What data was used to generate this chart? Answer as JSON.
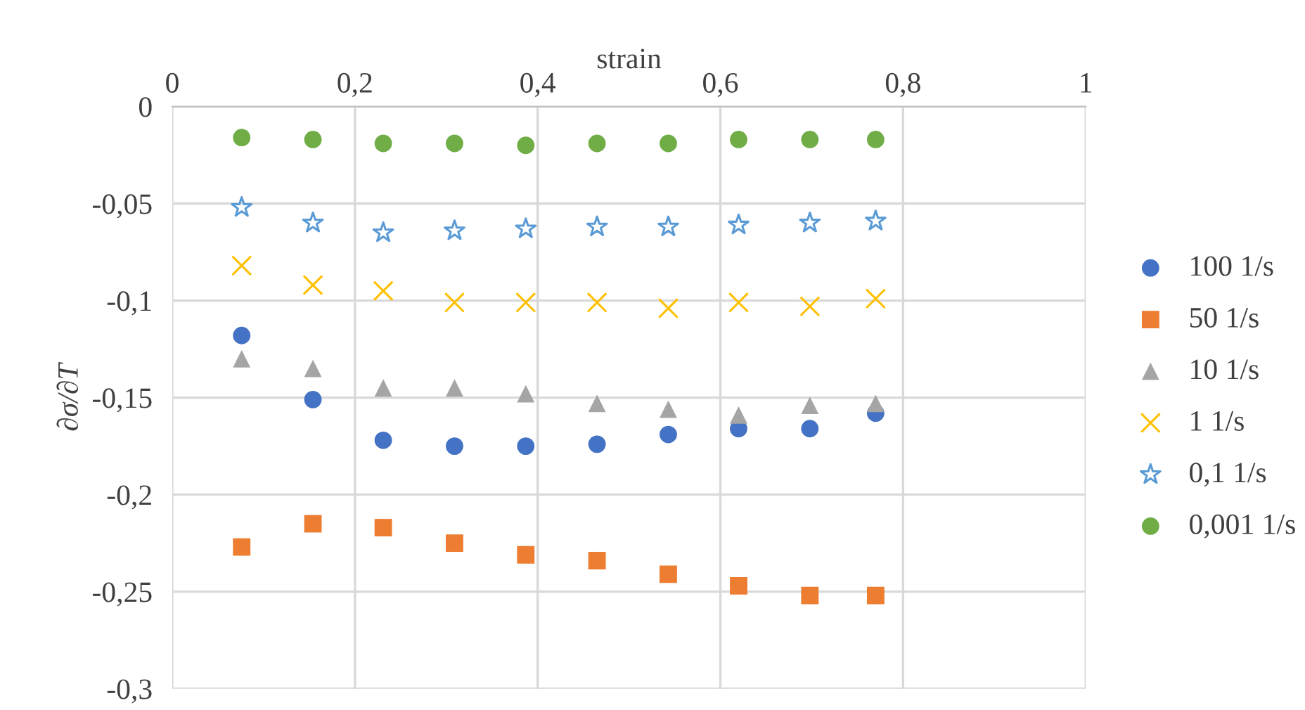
{
  "chart_data": {
    "type": "scatter",
    "xlabel": "strain",
    "ylabel": "∂σ/∂T",
    "xlim": [
      0,
      1
    ],
    "xticks": [
      0,
      {
        "value": 0.2,
        "label": "0,2"
      },
      {
        "value": 0.4,
        "label": "0,4"
      },
      {
        "value": 0.6,
        "label": "0,6"
      },
      {
        "value": 0.8,
        "label": "0,8"
      },
      1
    ],
    "ylim": [
      -0.3,
      0
    ],
    "yticks": [
      {
        "value": -0.3,
        "label": "-0,3"
      },
      {
        "value": -0.25,
        "label": "-0,25"
      },
      {
        "value": -0.2,
        "label": "-0,2"
      },
      {
        "value": -0.15,
        "label": "-0,15"
      },
      {
        "value": -0.1,
        "label": "-0,1"
      },
      {
        "value": -0.05,
        "label": "-0,05"
      },
      0
    ],
    "grid": true,
    "legend": "right",
    "x": [
      0.076,
      0.154,
      0.231,
      0.309,
      0.387,
      0.465,
      0.543,
      0.62,
      0.698,
      0.77
    ],
    "series": [
      {
        "name": "100 1/s",
        "color": "#4472c4",
        "marker": "circle",
        "values": [
          -0.118,
          -0.151,
          -0.172,
          -0.175,
          -0.175,
          -0.174,
          -0.169,
          -0.166,
          -0.166,
          -0.158
        ]
      },
      {
        "name": "50 1/s",
        "color": "#ed7d31",
        "marker": "square",
        "values": [
          -0.227,
          -0.215,
          -0.217,
          -0.225,
          -0.231,
          -0.234,
          -0.241,
          -0.247,
          -0.252,
          -0.252
        ]
      },
      {
        "name": "10 1/s",
        "color": "#a5a5a5",
        "marker": "triangle",
        "values": [
          -0.13,
          -0.135,
          -0.145,
          -0.145,
          -0.148,
          -0.153,
          -0.156,
          -0.159,
          -0.154,
          -0.153
        ]
      },
      {
        "name": "1 1/s",
        "color": "#ffc000",
        "marker": "cross",
        "values": [
          -0.082,
          -0.092,
          -0.095,
          -0.101,
          -0.101,
          -0.101,
          -0.104,
          -0.101,
          -0.103,
          -0.099
        ]
      },
      {
        "name": "0,1 1/s",
        "color": "#5b9bd5",
        "marker": "star",
        "values": [
          -0.052,
          -0.06,
          -0.065,
          -0.064,
          -0.063,
          -0.062,
          -0.062,
          -0.061,
          -0.06,
          -0.059
        ]
      },
      {
        "name": "0,001 1/s",
        "color": "#70ad47",
        "marker": "circle",
        "values": [
          -0.016,
          -0.017,
          -0.019,
          -0.019,
          -0.02,
          -0.019,
          -0.019,
          -0.017,
          -0.017,
          -0.017
        ]
      }
    ]
  }
}
